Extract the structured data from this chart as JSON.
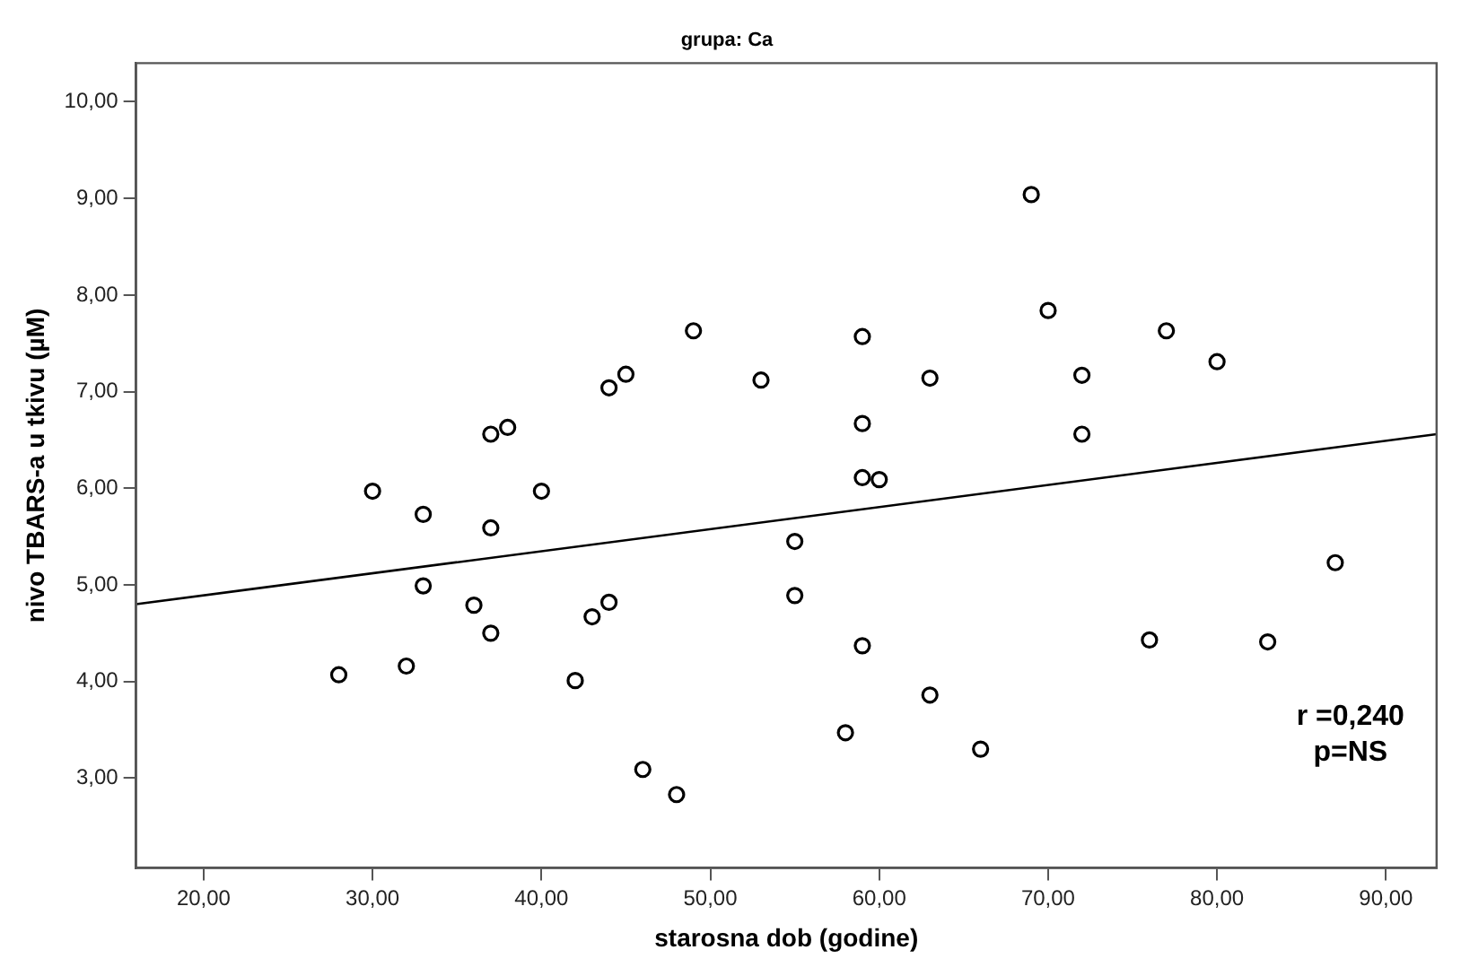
{
  "chart_data": {
    "type": "scatter",
    "title": "grupa: Ca",
    "xlabel": "starosna dob (godine)",
    "ylabel": "nivo TBARS-a u tkivu (µM)",
    "xlim": [
      16,
      93
    ],
    "ylim": [
      2.07,
      10.4
    ],
    "xticks": [
      {
        "value": 20,
        "label": "20,00"
      },
      {
        "value": 30,
        "label": "30,00"
      },
      {
        "value": 40,
        "label": "40,00"
      },
      {
        "value": 50,
        "label": "50,00"
      },
      {
        "value": 60,
        "label": "60,00"
      },
      {
        "value": 70,
        "label": "70,00"
      },
      {
        "value": 80,
        "label": "80,00"
      },
      {
        "value": 90,
        "label": "90,00"
      }
    ],
    "yticks": [
      {
        "value": 3,
        "label": "3,00"
      },
      {
        "value": 4,
        "label": "4,00"
      },
      {
        "value": 5,
        "label": "5,00"
      },
      {
        "value": 6,
        "label": "6,00"
      },
      {
        "value": 7,
        "label": "7,00"
      },
      {
        "value": 8,
        "label": "8,00"
      },
      {
        "value": 9,
        "label": "9,00"
      },
      {
        "value": 10,
        "label": "10,00"
      }
    ],
    "grid": false,
    "legend": false,
    "marker": "circle",
    "annotations": [
      "r =0,240",
      "p=NS"
    ],
    "series": [
      {
        "type": "scatter",
        "color": "#000000",
        "x": [
          30,
          33,
          37,
          40,
          33,
          36,
          37,
          28,
          32,
          43,
          44,
          42,
          46,
          48,
          37,
          38,
          44,
          45,
          49,
          53,
          69,
          70,
          59,
          63,
          77,
          80,
          72,
          72,
          59,
          59,
          60,
          55,
          55,
          59,
          63,
          58,
          66,
          76,
          83,
          87
        ],
        "values": [
          5.97,
          5.73,
          5.59,
          5.97,
          4.99,
          4.79,
          4.5,
          4.07,
          4.16,
          4.67,
          4.82,
          4.01,
          3.09,
          2.83,
          6.56,
          6.63,
          7.04,
          7.18,
          7.63,
          7.12,
          9.04,
          7.84,
          7.57,
          7.14,
          7.63,
          7.31,
          7.17,
          6.56,
          6.67,
          6.11,
          6.09,
          5.45,
          4.89,
          4.37,
          3.86,
          3.47,
          3.3,
          4.43,
          4.41,
          5.23
        ]
      },
      {
        "type": "line",
        "color": "#000000",
        "marker": "none",
        "x": [
          16,
          93
        ],
        "values": [
          4.8,
          6.56
        ]
      }
    ]
  }
}
